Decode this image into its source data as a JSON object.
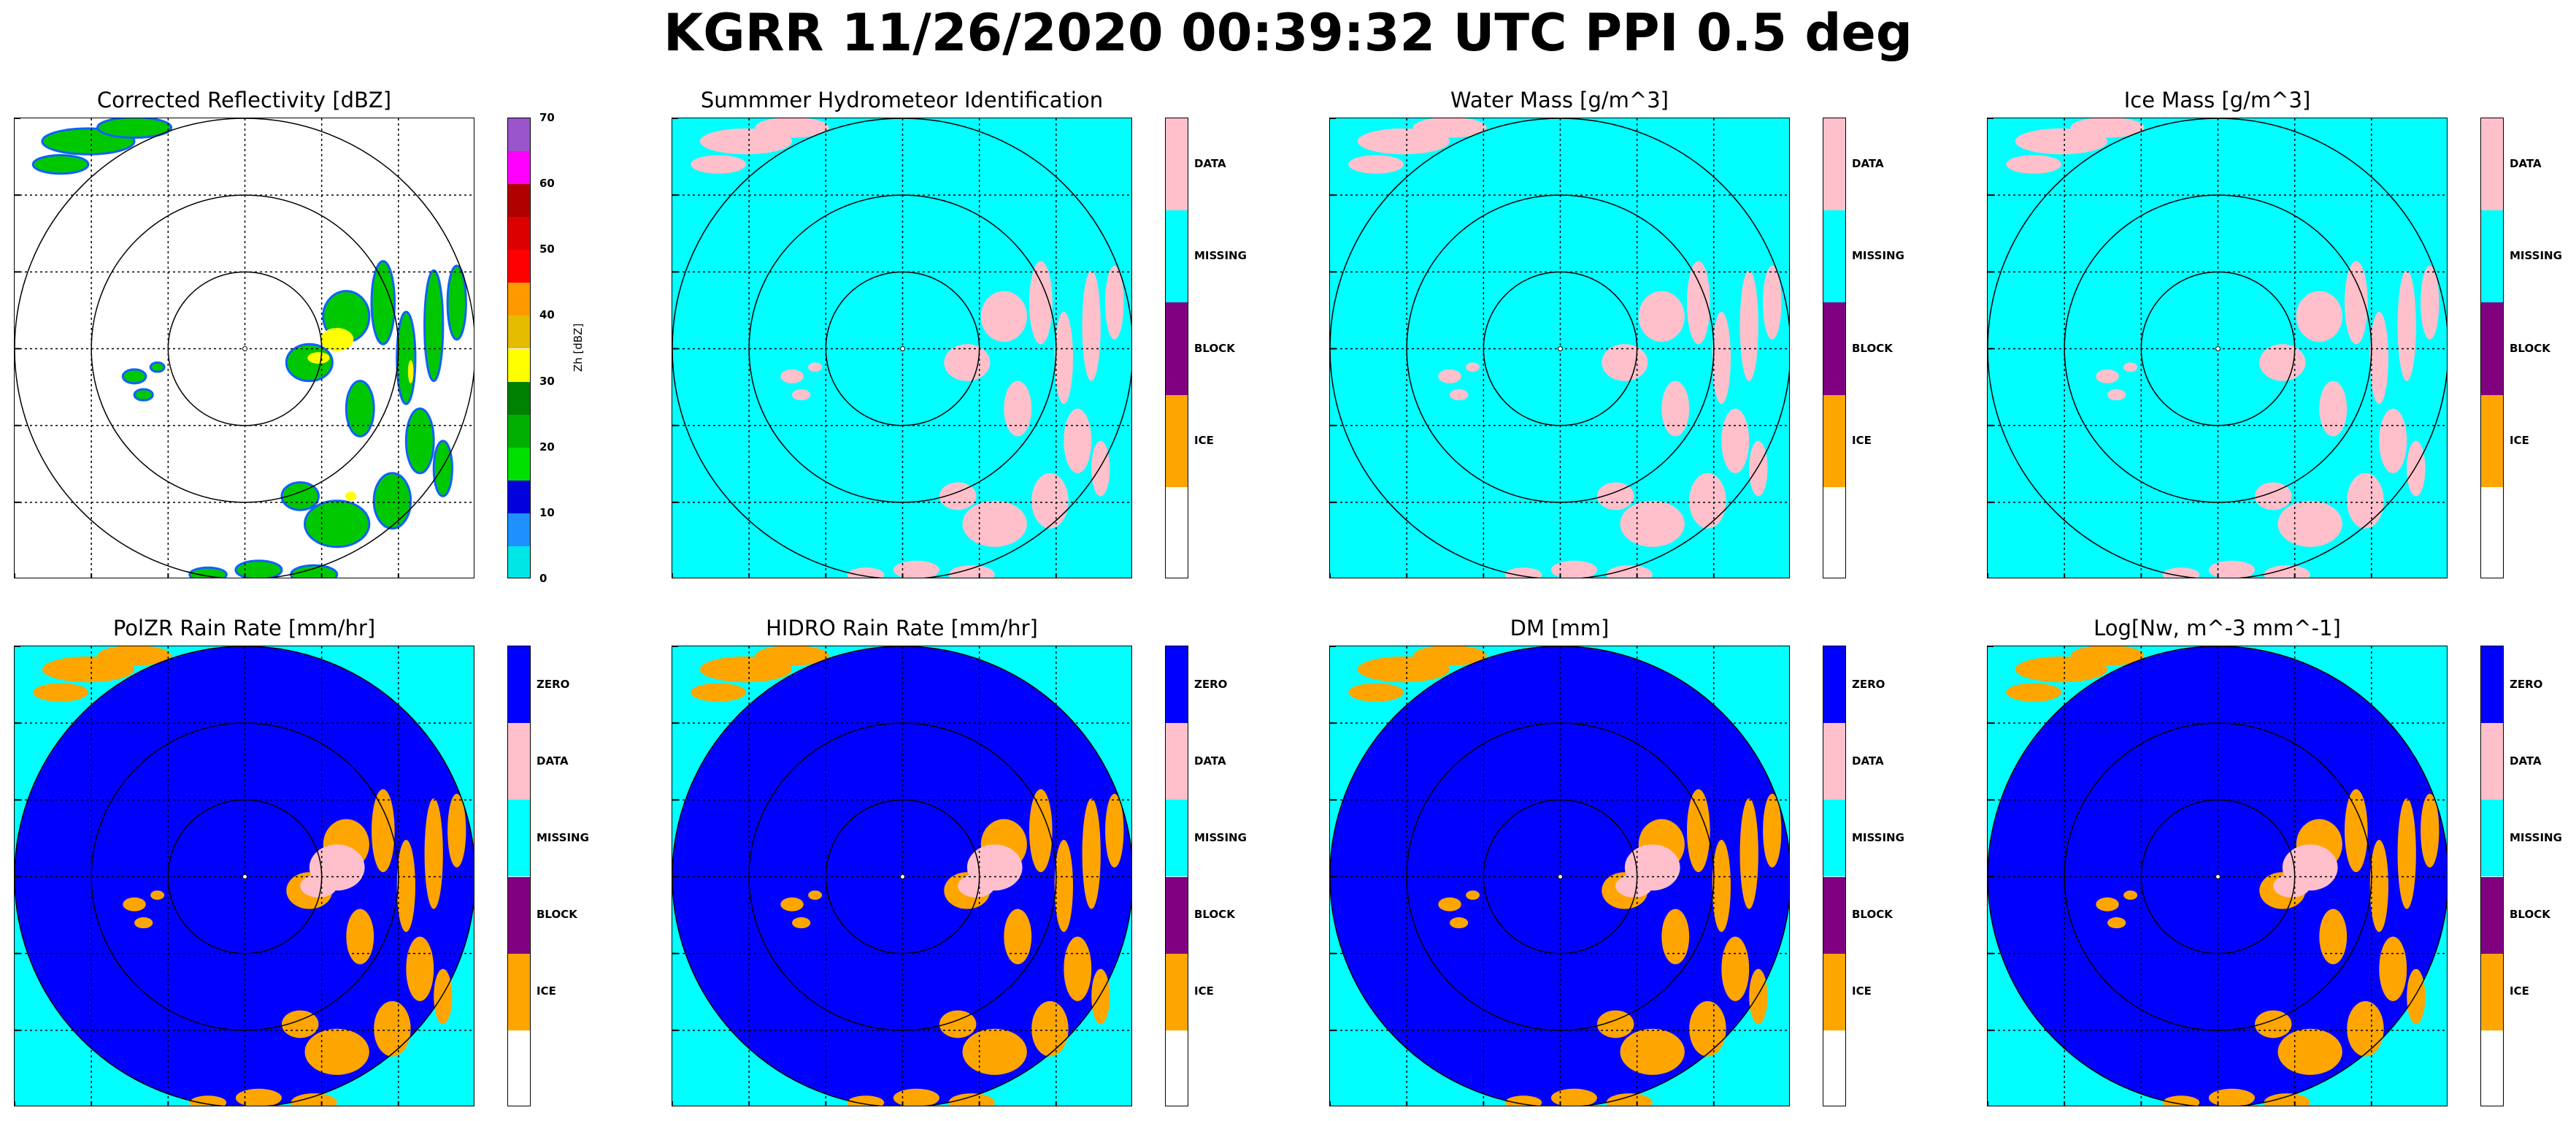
{
  "title": "KGRR 11/26/2020 00:39:32 UTC PPI 0.5 deg",
  "panels": [
    {
      "title": "Corrected Reflectivity [dBZ]",
      "kind": "reflectivity",
      "colorbar": "dbz"
    },
    {
      "title": "Summmer Hydrometeor Identification",
      "kind": "hydro",
      "colorbar": "class4"
    },
    {
      "title": "Water Mass [g/m^3]",
      "kind": "hydro",
      "colorbar": "class4"
    },
    {
      "title": "Ice Mass [g/m^3]",
      "kind": "hydro",
      "colorbar": "class4"
    },
    {
      "title": "PolZR Rain Rate [mm/hr]",
      "kind": "rate",
      "colorbar": "class5"
    },
    {
      "title": "HIDRO Rain Rate [mm/hr]",
      "kind": "rate",
      "colorbar": "class5"
    },
    {
      "title": "DM [mm]",
      "kind": "rate",
      "colorbar": "class5"
    },
    {
      "title": "Log[Nw, m^-3 mm^-1]",
      "kind": "rate",
      "colorbar": "class5"
    }
  ],
  "colorbars": {
    "dbz": {
      "axis_label": "Zh [dBZ]",
      "ticks": [
        "0",
        "10",
        "20",
        "30",
        "40",
        "50",
        "60",
        "70"
      ],
      "colors": [
        "#00e5e5",
        "#1e90ff",
        "#0000dd",
        "#00e000",
        "#00b000",
        "#008000",
        "#ffff00",
        "#e5bc00",
        "#ff9900",
        "#ff0000",
        "#dd0000",
        "#b00000",
        "#ff00ff",
        "#9955c9"
      ]
    },
    "class4": {
      "labels": [
        "DATA",
        "MISSING",
        "BLOCK",
        "ICE"
      ],
      "colors": [
        "#ffc0cb",
        "#00ffff",
        "#800080",
        "#ffa500",
        "#ffffff"
      ]
    },
    "class5": {
      "labels": [
        "ZERO",
        "DATA",
        "MISSING",
        "BLOCK",
        "ICE"
      ],
      "colors": [
        "#0000ff",
        "#ffc0cb",
        "#00ffff",
        "#800080",
        "#ffa500",
        "#ffffff"
      ]
    }
  },
  "colors": {
    "missing": "#00ffff",
    "zero": "#0000ff",
    "data": "#ffc0cb",
    "ice": "#ffa500"
  }
}
